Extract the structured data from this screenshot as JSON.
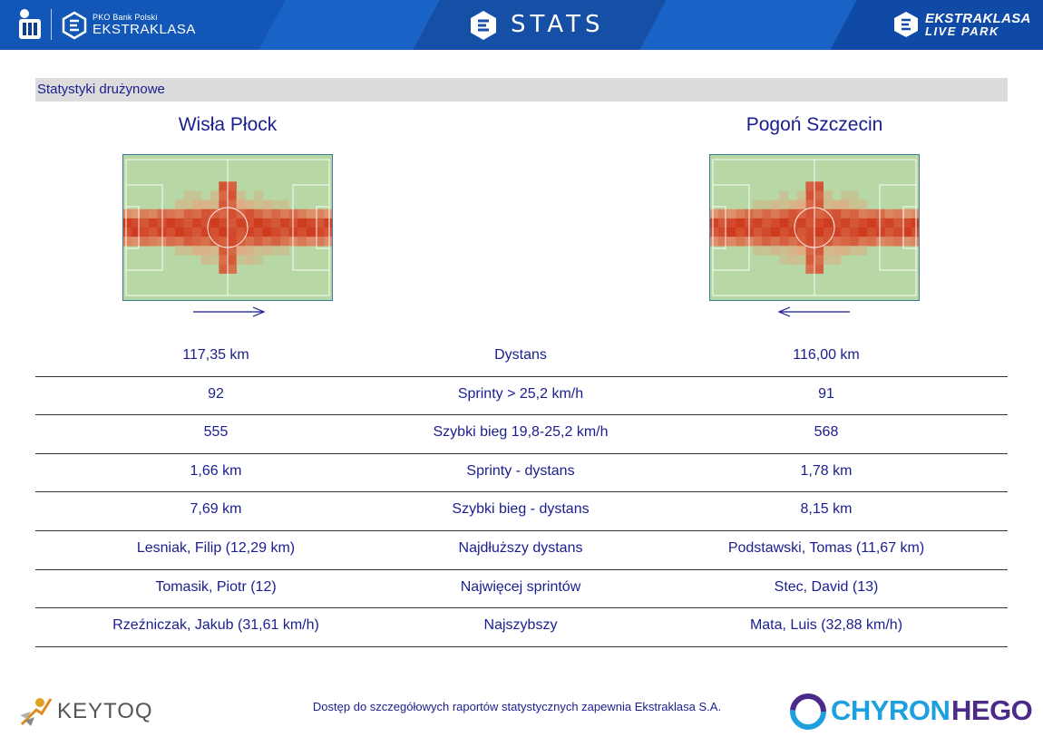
{
  "header": {
    "pko_small": "PKO Bank Polski",
    "league_name": "EKSTRAKLASA",
    "stats_title": "STATS",
    "live_park_line1": "EKSTRAKLASA",
    "live_park_line2": "LIVE PARK",
    "colors": {
      "banner": "#1257b7",
      "banner_dark": "#0c3f92"
    }
  },
  "section": {
    "title": "Statystyki drużynowe"
  },
  "teams": {
    "left": {
      "name": "Wisła Płock",
      "attack_direction": "right"
    },
    "right": {
      "name": "Pogoń Szczecin",
      "attack_direction": "left"
    }
  },
  "stats": [
    {
      "left": "117,35 km",
      "label": "Dystans",
      "right": "116,00 km"
    },
    {
      "left": "92",
      "label": "Sprinty > 25,2 km/h",
      "right": "91"
    },
    {
      "left": "555",
      "label": "Szybki bieg 19,8-25,2 km/h",
      "right": "568"
    },
    {
      "left": "1,66 km",
      "label": "Sprinty - dystans",
      "right": "1,78 km"
    },
    {
      "left": "7,69 km",
      "label": "Szybki bieg - dystans",
      "right": "8,15 km"
    },
    {
      "left": "Lesniak, Filip (12,29 km)",
      "label": "Najdłuższy dystans",
      "right": "Podstawski, Tomas (11,67 km)"
    },
    {
      "left": "Tomasik, Piotr (12)",
      "label": "Najwięcej sprintów",
      "right": "Stec, David (13)"
    },
    {
      "left": "Rzeźniczak, Jakub (31,61 km/h)",
      "label": "Najszybszy",
      "right": "Mata, Luis (32,88 km/h)"
    }
  ],
  "footer": {
    "keytoq": "KEYTOQ",
    "note": "Dostęp do szczegółowych raportów statystycznych zapewnia Ekstraklasa S.A.",
    "chyron_part1": "CHYRON",
    "chyron_part2": "HEGO"
  },
  "icons": [
    "pko-icon",
    "ekstraklasa-icon",
    "stats-icon",
    "live-park-icon",
    "keytoq-icon",
    "chyron-icon"
  ]
}
